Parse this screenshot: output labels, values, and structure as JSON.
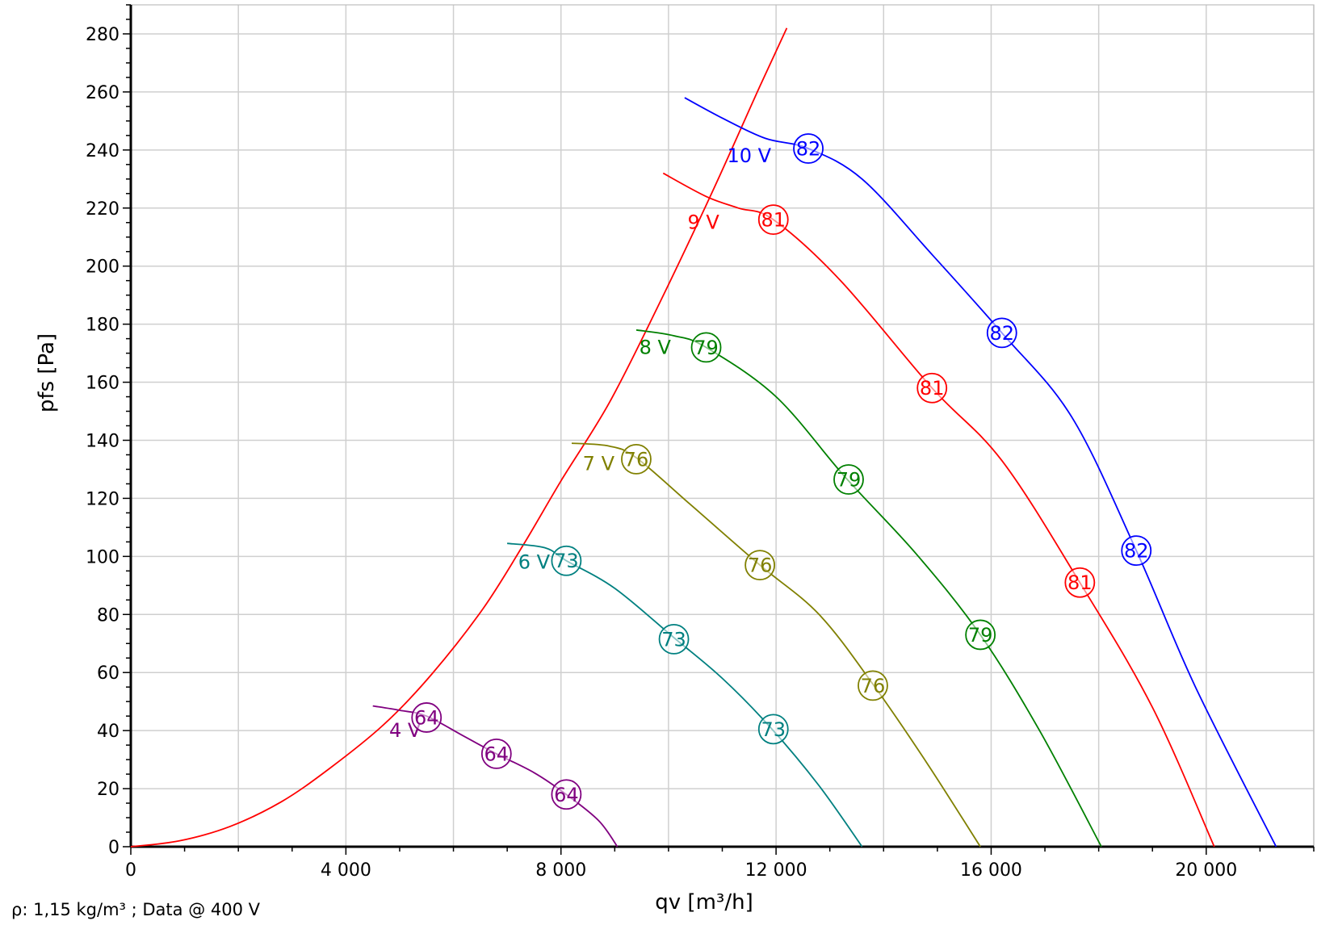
{
  "footnote": "ρ: 1,15 kg/m³ ; Data @ 400 V",
  "chart_data": {
    "type": "line",
    "xlabel": "qv [m³/h]",
    "ylabel": "pfs [Pa]",
    "xlim": [
      0,
      22000
    ],
    "ylim": [
      0,
      290
    ],
    "grid": true,
    "x_ticks": [
      0,
      4000,
      8000,
      12000,
      16000,
      20000
    ],
    "x_tick_labels": [
      "0",
      "4 000",
      "8 000",
      "12 000",
      "16 000",
      "20 000"
    ],
    "y_ticks": [
      0,
      20,
      40,
      60,
      80,
      100,
      120,
      140,
      160,
      180,
      200,
      220,
      240,
      260,
      280
    ],
    "y_tick_labels": [
      "0",
      "20",
      "40",
      "60",
      "80",
      "100",
      "120",
      "140",
      "160",
      "180",
      "200",
      "220",
      "240",
      "260",
      "280"
    ],
    "series": [
      {
        "color": "#ff0000",
        "points": [
          [
            0,
            0
          ],
          [
            900,
            2
          ],
          [
            1850,
            7
          ],
          [
            2800,
            15.5
          ],
          [
            3700,
            27
          ],
          [
            4700,
            42
          ],
          [
            5600,
            59.5
          ],
          [
            6550,
            82
          ],
          [
            7300,
            104
          ],
          [
            8000,
            126
          ],
          [
            8900,
            153
          ],
          [
            9800,
            186
          ],
          [
            10800,
            225
          ],
          [
            11700,
            262
          ],
          [
            12200,
            282
          ]
        ]
      },
      {
        "name": "4 V",
        "color": "#800080",
        "points": [
          [
            4500,
            48.5
          ],
          [
            5000,
            47
          ],
          [
            5500,
            45
          ],
          [
            6200,
            38
          ],
          [
            6800,
            32
          ],
          [
            7500,
            25.5
          ],
          [
            8100,
            18
          ],
          [
            8700,
            9
          ],
          [
            9050,
            0
          ]
        ],
        "markers": [
          {
            "x": 5500,
            "y": 44.5,
            "label": "64"
          },
          {
            "x": 6800,
            "y": 32,
            "label": "64"
          },
          {
            "x": 8100,
            "y": 18,
            "label": "64"
          }
        ],
        "label_pos": [
          5100,
          40
        ]
      },
      {
        "name": "6 V",
        "color": "#008080",
        "points": [
          [
            7000,
            104.5
          ],
          [
            7700,
            103
          ],
          [
            8100,
            98.5
          ],
          [
            9000,
            89
          ],
          [
            10100,
            72
          ],
          [
            11000,
            58
          ],
          [
            11900,
            41
          ],
          [
            12800,
            21
          ],
          [
            13600,
            0
          ]
        ],
        "markers": [
          {
            "x": 8100,
            "y": 98.5,
            "label": "73"
          },
          {
            "x": 10100,
            "y": 71.5,
            "label": "73"
          },
          {
            "x": 11950,
            "y": 40.5,
            "label": "73"
          }
        ],
        "label_pos": [
          7500,
          98
        ]
      },
      {
        "name": "7 V",
        "color": "#808000",
        "points": [
          [
            8200,
            139
          ],
          [
            8900,
            138
          ],
          [
            9400,
            134
          ],
          [
            10400,
            118
          ],
          [
            11700,
            97
          ],
          [
            12800,
            80
          ],
          [
            13800,
            56
          ],
          [
            14800,
            29
          ],
          [
            15800,
            0
          ]
        ],
        "markers": [
          {
            "x": 9400,
            "y": 133.5,
            "label": "76"
          },
          {
            "x": 11700,
            "y": 97,
            "label": "76"
          },
          {
            "x": 13800,
            "y": 55.5,
            "label": "76"
          }
        ],
        "label_pos": [
          8700,
          132
        ]
      },
      {
        "name": "8 V",
        "color": "#008000",
        "points": [
          [
            9400,
            178
          ],
          [
            10100,
            176
          ],
          [
            10700,
            172
          ],
          [
            12000,
            155
          ],
          [
            13300,
            127
          ],
          [
            14600,
            101
          ],
          [
            15800,
            73
          ],
          [
            16900,
            40
          ],
          [
            18050,
            0
          ]
        ],
        "markers": [
          {
            "x": 10700,
            "y": 172,
            "label": "79"
          },
          {
            "x": 13350,
            "y": 126.5,
            "label": "79"
          },
          {
            "x": 15800,
            "y": 73,
            "label": "79"
          }
        ],
        "label_pos": [
          9750,
          172
        ]
      },
      {
        "name": "9 V",
        "color": "#ff0000",
        "points": [
          [
            9900,
            232
          ],
          [
            10700,
            224
          ],
          [
            11300,
            220
          ],
          [
            11950,
            216
          ],
          [
            13200,
            195
          ],
          [
            14900,
            158
          ],
          [
            16200,
            133
          ],
          [
            17650,
            91
          ],
          [
            19000,
            48
          ],
          [
            20150,
            0
          ]
        ],
        "markers": [
          {
            "x": 11950,
            "y": 216,
            "label": "81"
          },
          {
            "x": 14900,
            "y": 158,
            "label": "81"
          },
          {
            "x": 17650,
            "y": 91,
            "label": "81"
          }
        ],
        "label_pos": [
          10650,
          215
        ]
      },
      {
        "name": "10 V",
        "color": "#0000ff",
        "points": [
          [
            10300,
            258
          ],
          [
            11000,
            251
          ],
          [
            11800,
            244
          ],
          [
            12600,
            240.5
          ],
          [
            13600,
            230
          ],
          [
            14900,
            204
          ],
          [
            16200,
            177
          ],
          [
            17500,
            148
          ],
          [
            18700,
            102
          ],
          [
            19800,
            55
          ],
          [
            21300,
            0
          ]
        ],
        "markers": [
          {
            "x": 12600,
            "y": 240.5,
            "label": "82"
          },
          {
            "x": 16200,
            "y": 177,
            "label": "82"
          },
          {
            "x": 18700,
            "y": 102,
            "label": "82"
          }
        ],
        "label_pos": [
          11500,
          238
        ]
      }
    ]
  }
}
